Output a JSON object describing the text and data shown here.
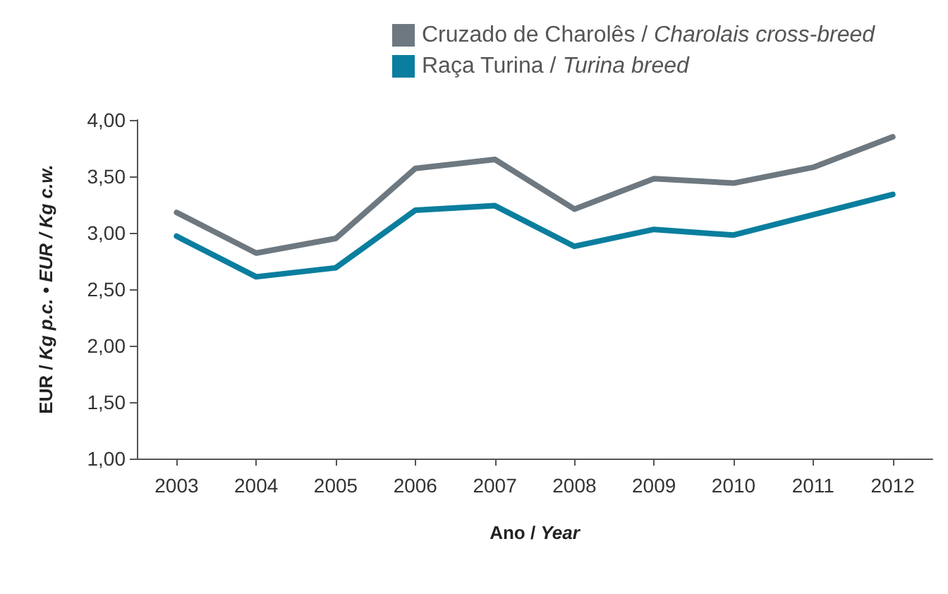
{
  "chart_data": {
    "type": "line",
    "xlabel": "Ano / Year",
    "ylabel": "EUR / Kg p.c. • EUR / Kg c.w.",
    "categories": [
      "2003",
      "2004",
      "2005",
      "2006",
      "2007",
      "2008",
      "2009",
      "2010",
      "2011",
      "2012"
    ],
    "series": [
      {
        "name": "Cruzado de Charolês / Charolais cross-breed",
        "color": "#6d7880",
        "values": [
          3.18,
          2.82,
          2.95,
          3.57,
          3.65,
          3.21,
          3.48,
          3.44,
          3.58,
          3.85
        ]
      },
      {
        "name": "Raça Turina / Turina breed",
        "color": "#0a7e9e",
        "values": [
          2.97,
          2.61,
          2.69,
          3.2,
          3.24,
          2.88,
          3.03,
          2.98,
          3.16,
          3.34
        ]
      }
    ],
    "ylim": [
      1,
      4
    ],
    "yticks": [
      {
        "value": 1,
        "label": "1,00"
      },
      {
        "value": 1.5,
        "label": "1,50"
      },
      {
        "value": 2,
        "label": "2,00"
      },
      {
        "value": 2.5,
        "label": "2,50"
      },
      {
        "value": 3,
        "label": "3,00"
      },
      {
        "value": 3.5,
        "label": "3,50"
      },
      {
        "value": 4,
        "label": "4,00"
      }
    ],
    "grid": false,
    "legend": "top",
    "marker": "none",
    "line_style": "solid"
  }
}
